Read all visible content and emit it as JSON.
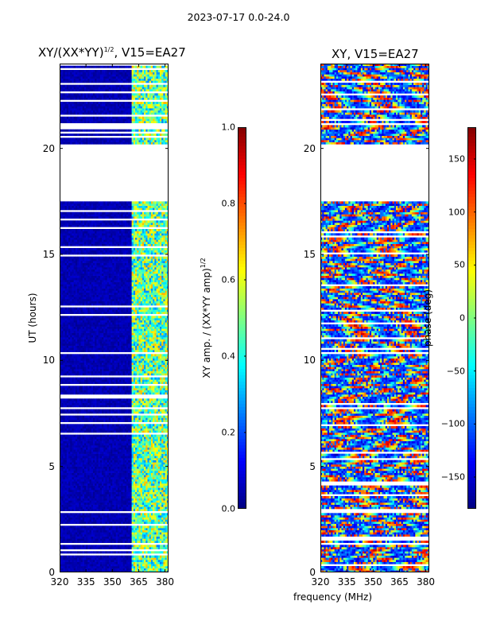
{
  "suptitle": "2023-07-17 0.0-24.0",
  "colors": {
    "gap": "#ffffff",
    "frame": "#000000"
  },
  "chart_data": [
    {
      "type": "heatmap",
      "title_main": "XY/(XX*YY)",
      "title_exp": "1/2",
      "title_suffix": ", V15=EA27",
      "xlabel": "",
      "ylabel": "UT (hours)",
      "xlim": [
        320,
        382
      ],
      "ylim": [
        0,
        24
      ],
      "xticks": [
        320,
        335,
        350,
        365,
        380
      ],
      "yticks": [
        0,
        5,
        10,
        15,
        20
      ],
      "colormap": "jet",
      "colorbar": {
        "label_main": "XY amp. / (XX*YY amp)",
        "label_exp": "1/2",
        "range": [
          0.0,
          1.0
        ],
        "ticks": [
          "0.0",
          "0.2",
          "0.4",
          "0.6",
          "0.8",
          "1.0"
        ],
        "tick_values": [
          0.0,
          0.2,
          0.4,
          0.6,
          0.8,
          1.0
        ]
      },
      "data_gaps_ut": [
        [
          17.5,
          20.2
        ]
      ],
      "description_values": {
        "low_band_freq": [
          320,
          361
        ],
        "low_band_value": 0.03,
        "high_band_freq": [
          361,
          382
        ],
        "high_band_value": 0.45
      }
    },
    {
      "type": "heatmap",
      "title_main": "XY, V15=EA27",
      "xlabel": "frequency (MHz)",
      "ylabel": "",
      "xlim": [
        320,
        382
      ],
      "ylim": [
        0,
        24
      ],
      "xticks": [
        320,
        335,
        350,
        365,
        380
      ],
      "yticks": [
        0,
        5,
        10,
        15,
        20
      ],
      "colormap": "jet",
      "colorbar": {
        "label_main": "phase (deg)",
        "range": [
          -180,
          180
        ],
        "ticks": [
          "150",
          "100",
          "50",
          "0",
          "−50",
          "−100",
          "−150"
        ],
        "tick_values": [
          150,
          100,
          50,
          0,
          -50,
          -100,
          -150
        ]
      },
      "data_gaps_ut": [
        [
          17.5,
          20.2
        ]
      ]
    }
  ]
}
